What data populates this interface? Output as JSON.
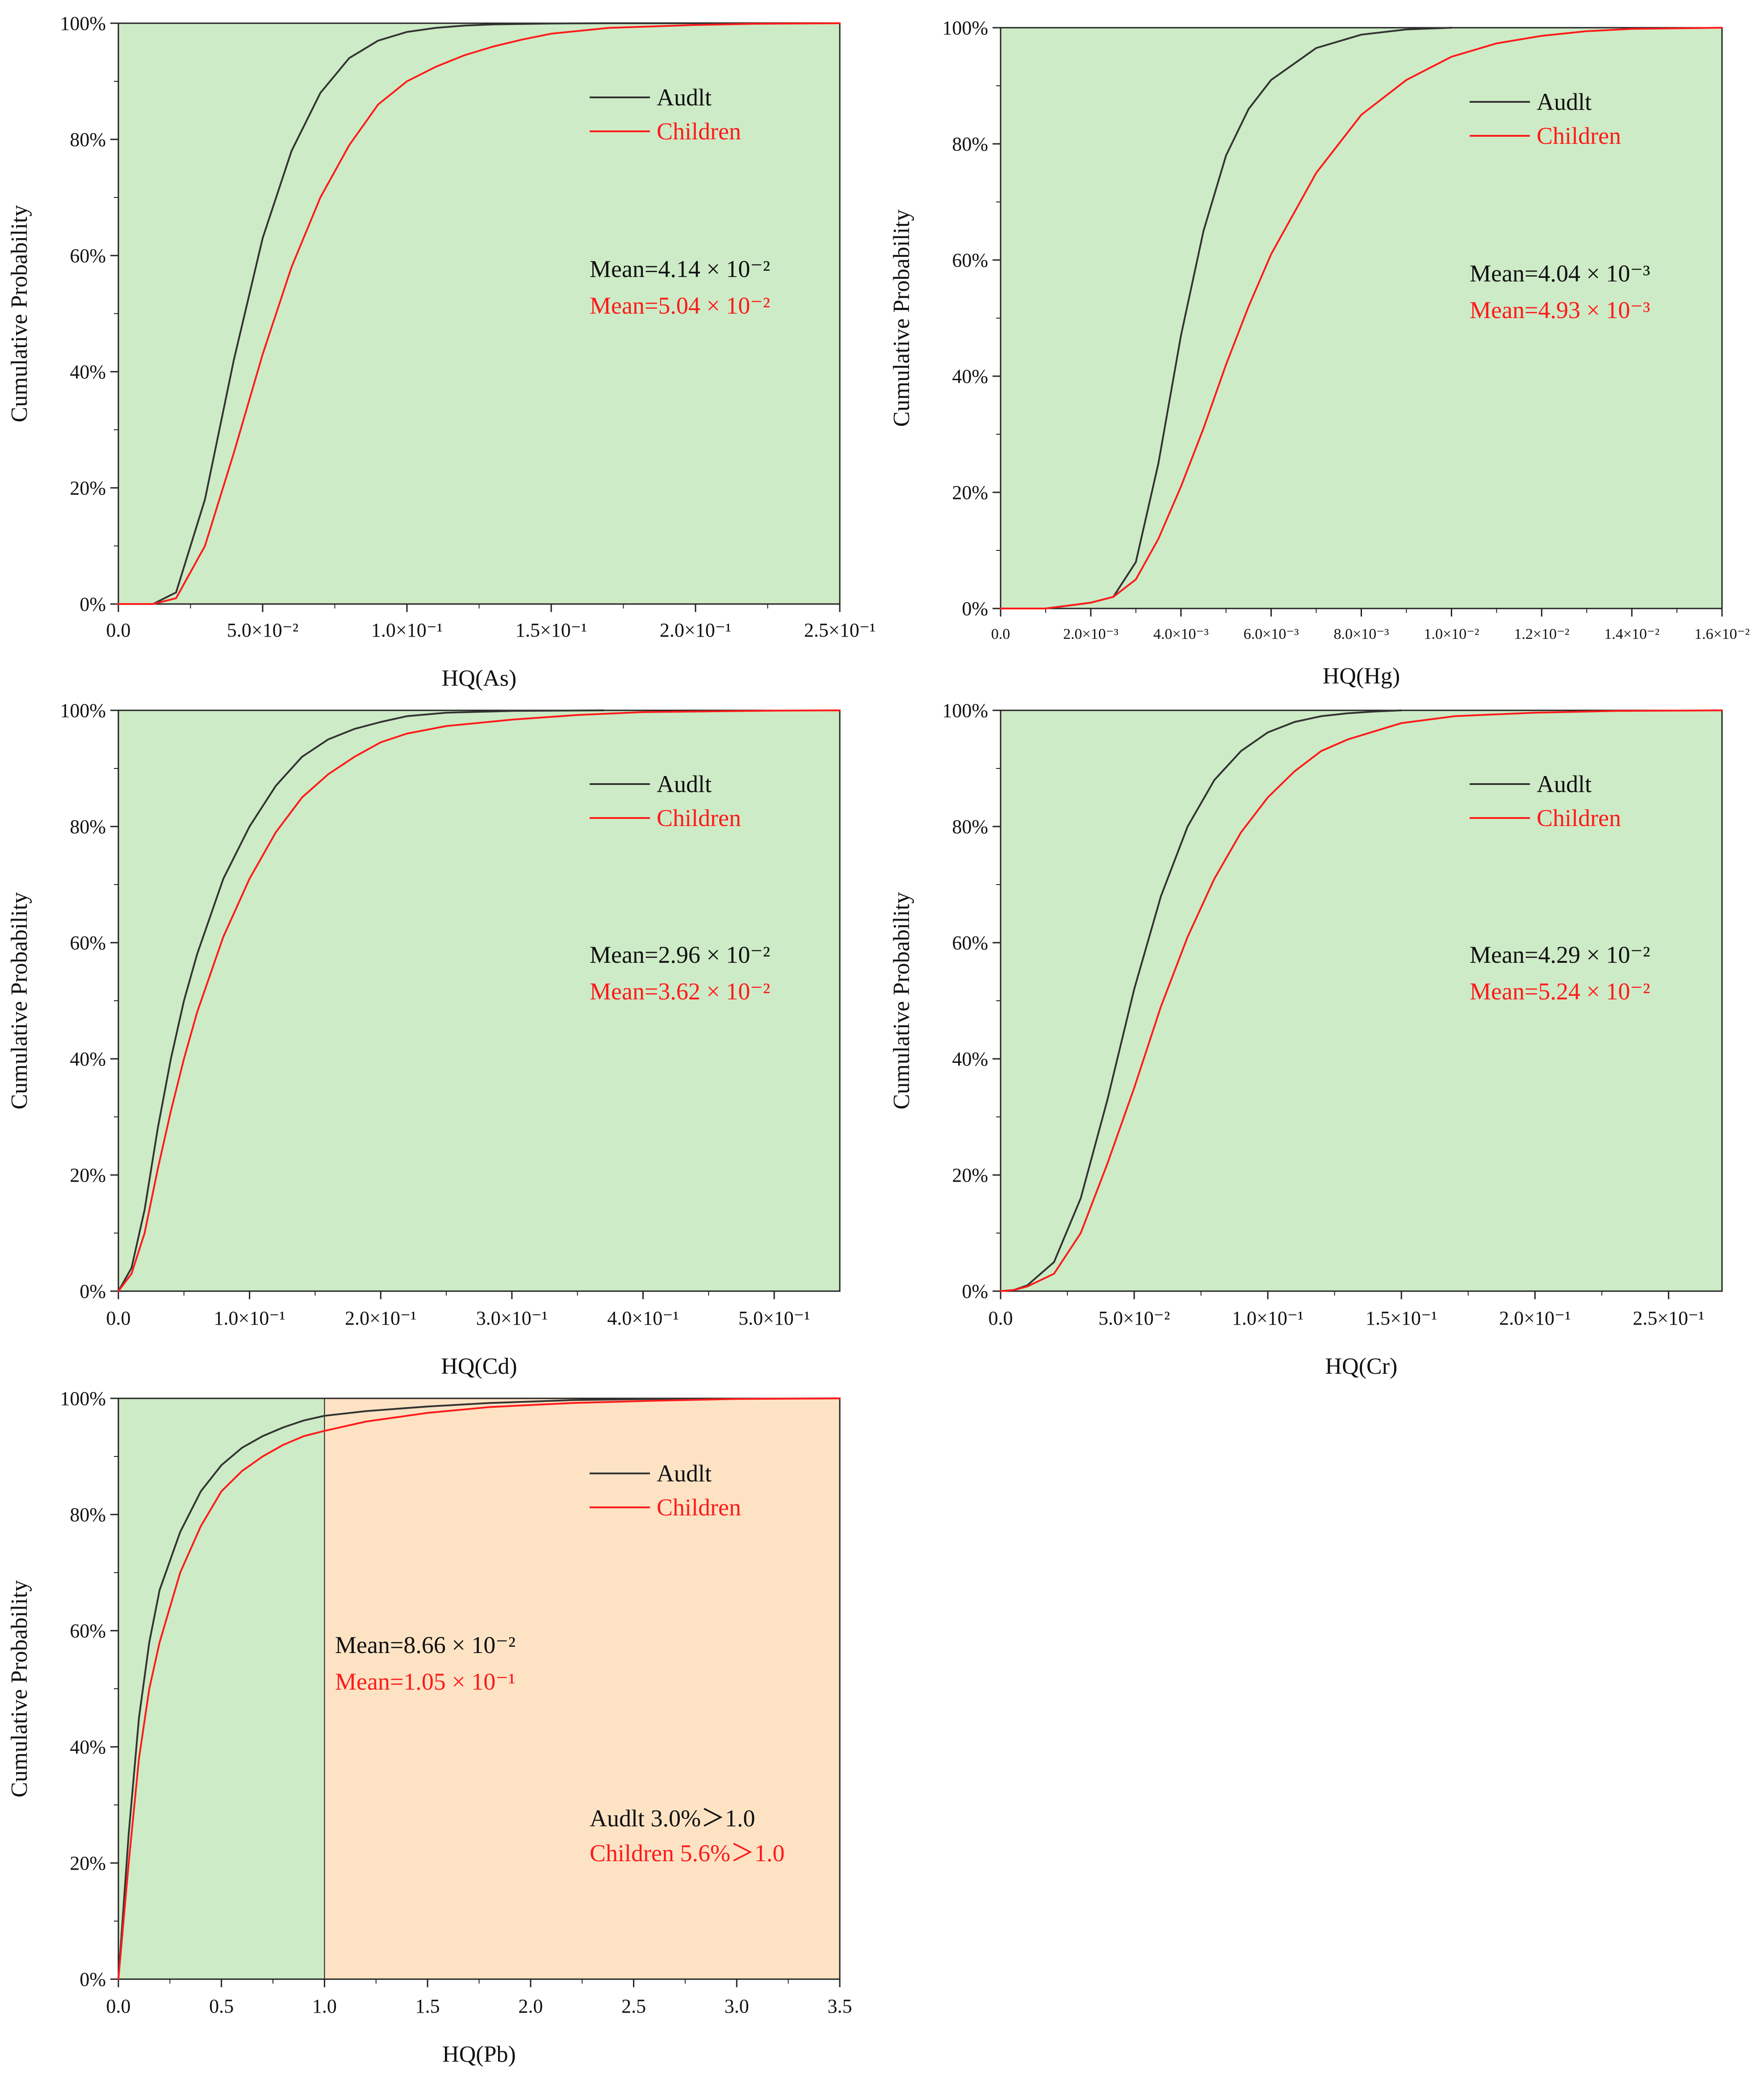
{
  "colors": {
    "adult": "#333333",
    "children": "#ff1a1a",
    "safe_zone": "#cdebc6",
    "risk_zone": "#fde3c4",
    "axis": "#222222"
  },
  "chart_data": [
    {
      "type": "line",
      "title": "",
      "xlabel": "HQ(As)",
      "ylabel": "Cumulative Probability",
      "xlim": [
        0,
        0.25
      ],
      "ylim": [
        0,
        100
      ],
      "xticks": [
        0,
        0.05,
        0.1,
        0.15,
        0.2,
        0.25
      ],
      "xtick_labels": [
        "0.0",
        "5.0×10⁻²",
        "1.0×10⁻¹",
        "1.5×10⁻¹",
        "2.0×10⁻¹",
        "2.5×10⁻¹"
      ],
      "yticks": [
        0,
        20,
        40,
        60,
        80,
        100
      ],
      "ytick_labels": [
        "0%",
        "20%",
        "40%",
        "60%",
        "80%",
        "100%"
      ],
      "legend": [
        "Audlt",
        "Children"
      ],
      "annotations": {
        "adult_mean": "Mean=4.14 × 10⁻²",
        "children_mean": "Mean=5.04 × 10⁻²"
      },
      "series": [
        {
          "name": "Audlt",
          "x": [
            0,
            0.012,
            0.02,
            0.03,
            0.04,
            0.05,
            0.06,
            0.07,
            0.08,
            0.09,
            0.1,
            0.11,
            0.12,
            0.13,
            0.15,
            0.17,
            0.2,
            0.25
          ],
          "y": [
            0,
            0,
            2,
            18,
            42,
            63,
            78,
            88,
            94,
            97,
            98.5,
            99.2,
            99.6,
            99.8,
            99.95,
            100,
            100,
            100
          ]
        },
        {
          "name": "Children",
          "x": [
            0,
            0.012,
            0.02,
            0.03,
            0.04,
            0.05,
            0.06,
            0.07,
            0.08,
            0.09,
            0.1,
            0.11,
            0.12,
            0.13,
            0.14,
            0.15,
            0.17,
            0.2,
            0.22,
            0.25
          ],
          "y": [
            0,
            0,
            1,
            10,
            26,
            43,
            58,
            70,
            79,
            86,
            90,
            92.5,
            94.5,
            96,
            97.2,
            98.2,
            99.2,
            99.7,
            99.9,
            100
          ]
        }
      ],
      "shaded_regions": [
        {
          "from": 0,
          "to": 0.25,
          "zone": "safe"
        }
      ]
    },
    {
      "type": "line",
      "title": "",
      "xlabel": "HQ(Hg)",
      "ylabel": "Cumulative Probability",
      "xlim": [
        0,
        0.016
      ],
      "ylim": [
        0,
        100
      ],
      "xticks": [
        0,
        0.002,
        0.004,
        0.006,
        0.008,
        0.01,
        0.012,
        0.014,
        0.016
      ],
      "xtick_labels": [
        "0.0",
        "2.0×10⁻³",
        "4.0×10⁻³",
        "6.0×10⁻³",
        "8.0×10⁻³",
        "1.0×10⁻²",
        "1.2×10⁻²",
        "1.4×10⁻²",
        "1.6×10⁻²"
      ],
      "yticks": [
        0,
        20,
        40,
        60,
        80,
        100
      ],
      "ytick_labels": [
        "0%",
        "20%",
        "40%",
        "60%",
        "80%",
        "100%"
      ],
      "legend": [
        "Audlt",
        "Children"
      ],
      "annotations": {
        "adult_mean": "Mean=4.04 × 10⁻³",
        "children_mean": "Mean=4.93 × 10⁻³"
      },
      "series": [
        {
          "name": "Audlt",
          "x": [
            0,
            0.001,
            0.002,
            0.0025,
            0.003,
            0.0035,
            0.004,
            0.0045,
            0.005,
            0.0055,
            0.006,
            0.007,
            0.008,
            0.009,
            0.01
          ],
          "y": [
            0,
            0,
            1,
            2,
            8,
            25,
            47,
            65,
            78,
            86,
            91,
            96.5,
            98.8,
            99.7,
            100
          ]
        },
        {
          "name": "Children",
          "x": [
            0,
            0.001,
            0.002,
            0.0025,
            0.003,
            0.0035,
            0.004,
            0.0045,
            0.005,
            0.0055,
            0.006,
            0.007,
            0.008,
            0.009,
            0.01,
            0.011,
            0.012,
            0.013,
            0.014,
            0.016
          ],
          "y": [
            0,
            0,
            1,
            2,
            5,
            12,
            21,
            31,
            42,
            52,
            61,
            75,
            85,
            91,
            95,
            97.3,
            98.6,
            99.4,
            99.8,
            100
          ]
        }
      ],
      "shaded_regions": [
        {
          "from": 0,
          "to": 0.016,
          "zone": "safe"
        }
      ]
    },
    {
      "type": "line",
      "title": "",
      "xlabel": "HQ(Cd)",
      "ylabel": "Cumulative Probability",
      "xlim": [
        0,
        0.55
      ],
      "ylim": [
        0,
        100
      ],
      "xticks": [
        0,
        0.1,
        0.2,
        0.3,
        0.4,
        0.5
      ],
      "xtick_labels": [
        "0.0",
        "1.0×10⁻¹",
        "2.0×10⁻¹",
        "3.0×10⁻¹",
        "4.0×10⁻¹",
        "5.0×10⁻¹"
      ],
      "yticks": [
        0,
        20,
        40,
        60,
        80,
        100
      ],
      "ytick_labels": [
        "0%",
        "20%",
        "40%",
        "60%",
        "80%",
        "100%"
      ],
      "legend": [
        "Audlt",
        "Children"
      ],
      "annotations": {
        "adult_mean": "Mean=2.96 × 10⁻²",
        "children_mean": "Mean=3.62 × 10⁻²"
      },
      "series": [
        {
          "name": "Audlt",
          "x": [
            0,
            0.01,
            0.02,
            0.03,
            0.04,
            0.05,
            0.06,
            0.08,
            0.1,
            0.12,
            0.14,
            0.16,
            0.18,
            0.2,
            0.22,
            0.25,
            0.3,
            0.37
          ],
          "y": [
            0,
            4,
            14,
            28,
            40,
            50,
            58,
            71,
            80,
            87,
            92,
            95,
            96.8,
            98,
            99,
            99.6,
            99.9,
            100
          ]
        },
        {
          "name": "Children",
          "x": [
            0,
            0.01,
            0.02,
            0.03,
            0.04,
            0.05,
            0.06,
            0.08,
            0.1,
            0.12,
            0.14,
            0.16,
            0.18,
            0.2,
            0.22,
            0.25,
            0.3,
            0.35,
            0.4,
            0.5,
            0.55
          ],
          "y": [
            0,
            3,
            10,
            21,
            31,
            40,
            48,
            61,
            71,
            79,
            85,
            89,
            92,
            94.5,
            96,
            97.3,
            98.4,
            99.2,
            99.7,
            99.95,
            100
          ]
        }
      ],
      "shaded_regions": [
        {
          "from": 0,
          "to": 0.55,
          "zone": "safe"
        }
      ]
    },
    {
      "type": "line",
      "title": "",
      "xlabel": "HQ(Cr)",
      "ylabel": "Cumulative Probability",
      "xlim": [
        0,
        0.27
      ],
      "ylim": [
        0,
        100
      ],
      "xticks": [
        0,
        0.05,
        0.1,
        0.15,
        0.2,
        0.25
      ],
      "xtick_labels": [
        "0.0",
        "5.0×10⁻²",
        "1.0×10⁻¹",
        "1.5×10⁻¹",
        "2.0×10⁻¹",
        "2.5×10⁻¹"
      ],
      "yticks": [
        0,
        20,
        40,
        60,
        80,
        100
      ],
      "ytick_labels": [
        "0%",
        "20%",
        "40%",
        "60%",
        "80%",
        "100%"
      ],
      "legend": [
        "Audlt",
        "Children"
      ],
      "annotations": {
        "adult_mean": "Mean=4.29 × 10⁻²",
        "children_mean": "Mean=5.24 × 10⁻²"
      },
      "series": [
        {
          "name": "Audlt",
          "x": [
            0,
            0.005,
            0.01,
            0.02,
            0.03,
            0.04,
            0.05,
            0.06,
            0.07,
            0.08,
            0.09,
            0.1,
            0.11,
            0.12,
            0.13,
            0.14,
            0.15
          ],
          "y": [
            0,
            0.2,
            1,
            5,
            16,
            33,
            52,
            68,
            80,
            88,
            93,
            96.2,
            98,
            99,
            99.5,
            99.8,
            100
          ]
        },
        {
          "name": "Children",
          "x": [
            0,
            0.005,
            0.01,
            0.02,
            0.03,
            0.04,
            0.05,
            0.06,
            0.07,
            0.08,
            0.09,
            0.1,
            0.11,
            0.12,
            0.13,
            0.15,
            0.17,
            0.2,
            0.23,
            0.27
          ],
          "y": [
            0,
            0.2,
            0.8,
            3,
            10,
            22,
            35,
            49,
            61,
            71,
            79,
            85,
            89.5,
            93,
            95,
            97.8,
            99,
            99.6,
            99.9,
            100
          ]
        }
      ],
      "shaded_regions": [
        {
          "from": 0,
          "to": 0.27,
          "zone": "safe"
        }
      ]
    },
    {
      "type": "line",
      "title": "",
      "xlabel": "HQ(Pb)",
      "ylabel": "Cumulative Probability",
      "xlim": [
        0,
        3.5
      ],
      "ylim": [
        0,
        100
      ],
      "xticks": [
        0,
        0.5,
        1,
        1.5,
        2,
        2.5,
        3,
        3.5
      ],
      "xtick_labels": [
        "0.0",
        "0.5",
        "1.0",
        "1.5",
        "2.0",
        "2.5",
        "3.0",
        "3.5"
      ],
      "yticks": [
        0,
        20,
        40,
        60,
        80,
        100
      ],
      "ytick_labels": [
        "0%",
        "20%",
        "40%",
        "60%",
        "80%",
        "100%"
      ],
      "legend": [
        "Audlt",
        "Children"
      ],
      "annotations": {
        "adult_mean": "Mean=8.66 × 10⁻²",
        "children_mean": "Mean=1.05 × 10⁻¹",
        "adult_exceed": "Audlt 3.0%＞1.0",
        "children_exceed": "Children 5.6%＞1.0"
      },
      "series": [
        {
          "name": "Audlt",
          "x": [
            0,
            0.05,
            0.1,
            0.15,
            0.2,
            0.3,
            0.4,
            0.5,
            0.6,
            0.7,
            0.8,
            0.9,
            1.0,
            1.2,
            1.5,
            1.8,
            2.2,
            2.6,
            3.5
          ],
          "y": [
            0,
            25,
            45,
            58,
            67,
            77,
            84,
            88.5,
            91.5,
            93.5,
            95,
            96.2,
            97,
            97.8,
            98.6,
            99.2,
            99.7,
            99.9,
            100
          ]
        },
        {
          "name": "Children",
          "x": [
            0,
            0.05,
            0.1,
            0.15,
            0.2,
            0.3,
            0.4,
            0.5,
            0.6,
            0.7,
            0.8,
            0.9,
            1.0,
            1.2,
            1.5,
            1.8,
            2.2,
            2.6,
            3.0,
            3.5
          ],
          "y": [
            0,
            20,
            38,
            50,
            58,
            70,
            78,
            84,
            87.5,
            90,
            92,
            93.5,
            94.4,
            96,
            97.5,
            98.5,
            99.2,
            99.6,
            99.9,
            100
          ]
        }
      ],
      "shaded_regions": [
        {
          "from": 0,
          "to": 1.0,
          "zone": "safe"
        },
        {
          "from": 1.0,
          "to": 3.5,
          "zone": "risk"
        }
      ]
    }
  ]
}
